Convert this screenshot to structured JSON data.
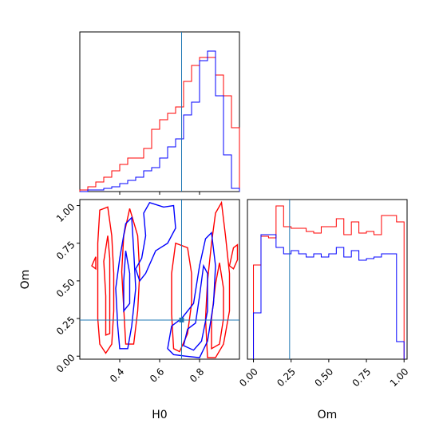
{
  "chart_data": {
    "type": "corner",
    "colors": {
      "series_a": "#ff0000",
      "series_b": "#0000ff",
      "truth": "#1f77b4"
    },
    "series": [
      {
        "color": "#ff0000"
      },
      {
        "color": "#0000ff"
      }
    ],
    "truth": {
      "H0": 0.71,
      "Om": 0.24
    },
    "panels": [
      {
        "id": "H0-marginal",
        "type": "histogram",
        "xlim": [
          0.2,
          1.0
        ],
        "bin_edges": [
          0.2,
          0.24,
          0.28,
          0.32,
          0.36,
          0.4,
          0.44,
          0.48,
          0.52,
          0.56,
          0.6,
          0.64,
          0.68,
          0.72,
          0.76,
          0.8,
          0.84,
          0.88,
          0.92,
          0.96,
          1.0
        ],
        "red_counts": [
          0.01,
          0.03,
          0.06,
          0.09,
          0.13,
          0.17,
          0.21,
          0.21,
          0.27,
          0.39,
          0.45,
          0.49,
          0.53,
          0.69,
          0.79,
          0.84,
          0.84,
          0.73,
          0.6,
          0.4
        ],
        "blue_counts": [
          0.0,
          0.01,
          0.01,
          0.02,
          0.03,
          0.05,
          0.07,
          0.09,
          0.13,
          0.15,
          0.21,
          0.28,
          0.33,
          0.48,
          0.56,
          0.82,
          0.88,
          0.6,
          0.23,
          0.02
        ]
      },
      {
        "id": "H0-Om-joint",
        "type": "contour",
        "xlabel": "H0",
        "ylabel": "Om",
        "xlim": [
          0.2,
          1.0
        ],
        "ylim": [
          -0.02,
          1.04
        ],
        "x_ticks": [
          0.4,
          0.6,
          0.8
        ],
        "y_ticks": [
          0.0,
          0.25,
          0.5,
          0.75,
          1.0
        ],
        "x_tick_labels": [
          "0.4",
          "0.6",
          "0.8"
        ],
        "y_tick_labels": [
          "0.00",
          "0.25",
          "0.50",
          "0.75",
          "1.00"
        ]
      },
      {
        "id": "Om-marginal",
        "type": "histogram",
        "xlabel": "Om",
        "xlim": [
          -0.04,
          1.02
        ],
        "x_ticks": [
          0.0,
          0.25,
          0.5,
          0.75,
          1.0
        ],
        "x_tick_labels": [
          "0.00",
          "0.25",
          "0.50",
          "0.75",
          "1.00"
        ],
        "bin_edges": [
          0.0,
          0.05,
          0.1,
          0.15,
          0.2,
          0.25,
          0.3,
          0.35,
          0.4,
          0.45,
          0.5,
          0.55,
          0.6,
          0.65,
          0.7,
          0.75,
          0.8,
          0.85,
          0.9,
          0.95,
          1.0
        ],
        "red_counts": [
          0.59,
          0.77,
          0.76,
          0.96,
          0.83,
          0.82,
          0.82,
          0.8,
          0.79,
          0.83,
          0.83,
          0.88,
          0.78,
          0.86,
          0.79,
          0.8,
          0.78,
          0.9,
          0.9,
          0.86
        ],
        "blue_counts": [
          0.29,
          0.78,
          0.78,
          0.7,
          0.66,
          0.68,
          0.66,
          0.64,
          0.66,
          0.64,
          0.66,
          0.7,
          0.64,
          0.68,
          0.62,
          0.63,
          0.64,
          0.66,
          0.66,
          0.11
        ]
      }
    ],
    "contours": [
      {
        "series": "red",
        "points": [
          [
            0.3,
            0.08
          ],
          [
            0.29,
            0.25
          ],
          [
            0.29,
            0.5
          ],
          [
            0.29,
            0.75
          ],
          [
            0.3,
            0.97
          ],
          [
            0.34,
            0.99
          ],
          [
            0.36,
            0.8
          ],
          [
            0.37,
            0.55
          ],
          [
            0.37,
            0.3
          ],
          [
            0.36,
            0.08
          ],
          [
            0.33,
            0.02
          ]
        ]
      },
      {
        "series": "red",
        "points": [
          [
            0.33,
            0.14
          ],
          [
            0.33,
            0.4
          ],
          [
            0.32,
            0.63
          ],
          [
            0.34,
            0.8
          ],
          [
            0.35,
            0.65
          ],
          [
            0.35,
            0.38
          ],
          [
            0.35,
            0.15
          ]
        ]
      },
      {
        "series": "red",
        "points": [
          [
            0.43,
            0.08
          ],
          [
            0.42,
            0.32
          ],
          [
            0.41,
            0.56
          ],
          [
            0.42,
            0.8
          ],
          [
            0.45,
            0.98
          ],
          [
            0.49,
            0.8
          ],
          [
            0.5,
            0.55
          ],
          [
            0.49,
            0.3
          ],
          [
            0.47,
            0.08
          ]
        ]
      },
      {
        "series": "red",
        "points": [
          [
            0.26,
            0.6
          ],
          [
            0.28,
            0.66
          ],
          [
            0.28,
            0.58
          ],
          [
            0.26,
            0.6
          ]
        ]
      },
      {
        "series": "red",
        "points": [
          [
            0.67,
            0.05
          ],
          [
            0.66,
            0.28
          ],
          [
            0.66,
            0.55
          ],
          [
            0.68,
            0.75
          ],
          [
            0.74,
            0.72
          ],
          [
            0.76,
            0.55
          ],
          [
            0.76,
            0.35
          ],
          [
            0.74,
            0.15
          ],
          [
            0.7,
            0.03
          ]
        ]
      },
      {
        "series": "red",
        "points": [
          [
            0.84,
            -0.01
          ],
          [
            0.83,
            0.25
          ],
          [
            0.84,
            0.5
          ],
          [
            0.86,
            0.75
          ],
          [
            0.88,
            0.95
          ],
          [
            0.91,
            1.02
          ],
          [
            0.93,
            0.8
          ],
          [
            0.95,
            0.55
          ],
          [
            0.95,
            0.3
          ],
          [
            0.92,
            0.08
          ],
          [
            0.88,
            -0.01
          ]
        ]
      },
      {
        "series": "red",
        "points": [
          [
            0.86,
            0.05
          ],
          [
            0.86,
            0.25
          ],
          [
            0.88,
            0.48
          ],
          [
            0.9,
            0.62
          ],
          [
            0.92,
            0.45
          ],
          [
            0.92,
            0.25
          ],
          [
            0.9,
            0.08
          ]
        ]
      },
      {
        "series": "red",
        "points": [
          [
            0.95,
            0.6
          ],
          [
            0.97,
            0.72
          ],
          [
            0.99,
            0.74
          ],
          [
            0.99,
            0.64
          ],
          [
            0.97,
            0.58
          ],
          [
            0.95,
            0.6
          ]
        ]
      },
      {
        "series": "blue",
        "points": [
          [
            0.4,
            0.05
          ],
          [
            0.39,
            0.2
          ],
          [
            0.38,
            0.45
          ],
          [
            0.4,
            0.65
          ],
          [
            0.43,
            0.88
          ],
          [
            0.46,
            0.92
          ],
          [
            0.47,
            0.7
          ],
          [
            0.48,
            0.45
          ],
          [
            0.46,
            0.2
          ],
          [
            0.44,
            0.05
          ]
        ]
      },
      {
        "series": "blue",
        "points": [
          [
            0.42,
            0.3
          ],
          [
            0.42,
            0.5
          ],
          [
            0.43,
            0.7
          ],
          [
            0.45,
            0.55
          ],
          [
            0.45,
            0.35
          ]
        ]
      },
      {
        "series": "blue",
        "points": [
          [
            0.48,
            0.58
          ],
          [
            0.51,
            0.65
          ],
          [
            0.53,
            0.8
          ],
          [
            0.52,
            0.95
          ],
          [
            0.55,
            1.02
          ],
          [
            0.62,
            0.99
          ],
          [
            0.67,
            1.0
          ],
          [
            0.68,
            0.85
          ],
          [
            0.64,
            0.75
          ],
          [
            0.58,
            0.7
          ],
          [
            0.53,
            0.55
          ],
          [
            0.5,
            0.5
          ]
        ]
      },
      {
        "series": "blue",
        "points": [
          [
            0.64,
            0.05
          ],
          [
            0.66,
            0.2
          ],
          [
            0.71,
            0.25
          ],
          [
            0.77,
            0.35
          ],
          [
            0.8,
            0.6
          ],
          [
            0.83,
            0.78
          ],
          [
            0.86,
            0.82
          ],
          [
            0.88,
            0.6
          ],
          [
            0.87,
            0.35
          ],
          [
            0.84,
            0.1
          ],
          [
            0.8,
            -0.01
          ],
          [
            0.73,
            0.0
          ],
          [
            0.67,
            0.01
          ]
        ]
      },
      {
        "series": "blue",
        "points": [
          [
            0.72,
            0.07
          ],
          [
            0.74,
            0.18
          ],
          [
            0.78,
            0.22
          ],
          [
            0.8,
            0.4
          ],
          [
            0.82,
            0.6
          ],
          [
            0.84,
            0.55
          ],
          [
            0.84,
            0.3
          ],
          [
            0.81,
            0.1
          ],
          [
            0.77,
            0.04
          ]
        ]
      }
    ]
  }
}
